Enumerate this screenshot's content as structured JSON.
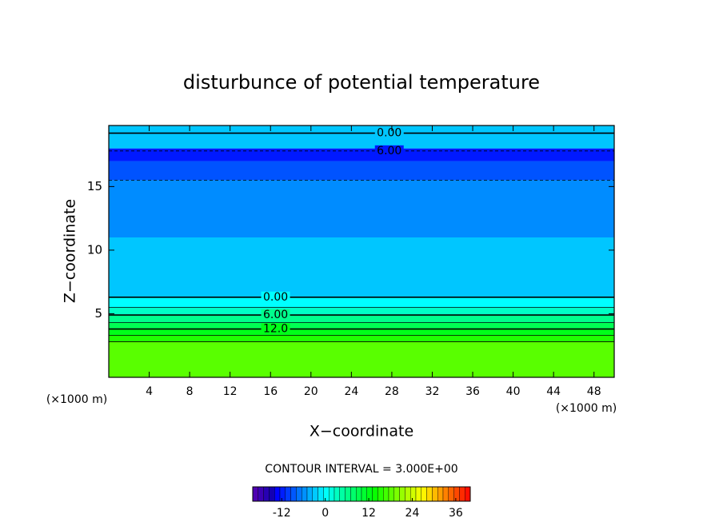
{
  "chart_data": {
    "type": "contour",
    "title": "disturbunce of potential temperature",
    "x_label": "X−coordinate",
    "y_label": "Z−coordinate",
    "x_unit": "(×1000 m)",
    "xlim": [
      0,
      50
    ],
    "xticks": [
      4,
      8,
      12,
      16,
      20,
      24,
      28,
      32,
      36,
      40,
      44,
      48
    ],
    "ylim": [
      0,
      19.8
    ],
    "yticks": [
      5,
      10,
      15
    ],
    "bands": [
      {
        "z0": 0,
        "z1": 2.8,
        "value": 18
      },
      {
        "z0": 2.8,
        "z1": 3.3,
        "value": 15
      },
      {
        "z0": 3.3,
        "z1": 3.8,
        "value": 12
      },
      {
        "z0": 3.8,
        "z1": 4.3,
        "value": 9
      },
      {
        "z0": 4.3,
        "z1": 4.9,
        "value": 6
      },
      {
        "z0": 4.9,
        "z1": 5.5,
        "value": 3
      },
      {
        "z0": 5.5,
        "z1": 6.3,
        "value": 0
      },
      {
        "z0": 6.3,
        "z1": 11,
        "value": -3
      },
      {
        "z0": 11,
        "z1": 15.5,
        "value": -6
      },
      {
        "z0": 15.5,
        "z1": 17,
        "value": -9
      },
      {
        "z0": 17,
        "z1": 18,
        "value": -12
      },
      {
        "z0": 18,
        "z1": 19.8,
        "value": -3
      }
    ],
    "contours": [
      {
        "z": 2.8
      },
      {
        "z": 3.3
      },
      {
        "z": 3.8,
        "label": "12.0"
      },
      {
        "z": 4.3
      },
      {
        "z": 4.9,
        "label": "6.00"
      },
      {
        "z": 5.5
      },
      {
        "z": 6.3,
        "label": "0.00"
      },
      {
        "z": 15.5,
        "dashed": true
      },
      {
        "z": 17.8,
        "dashed": true,
        "label": "6.00"
      },
      {
        "z": 19.2,
        "label": "0.00"
      }
    ],
    "contour_interval_text": "CONTOUR INTERVAL = 3.000E+00",
    "colorbar": {
      "lim": [
        -20,
        40
      ],
      "ticks": [
        -12,
        0,
        12,
        24,
        36
      ],
      "step": 1.5
    }
  }
}
